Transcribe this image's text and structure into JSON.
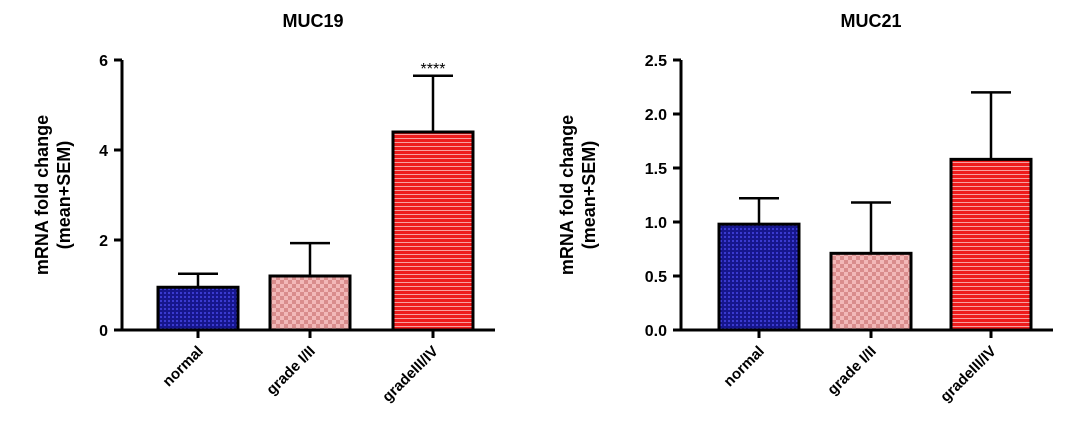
{
  "chart_data": [
    {
      "type": "bar",
      "title": "MUC19",
      "ylabel_line1": "mRNA fold change",
      "ylabel_line2": "(mean+SEM)",
      "xlabel": "",
      "categories": [
        "normal",
        "grade I/II",
        "gradeIII/IV"
      ],
      "values": [
        0.95,
        1.2,
        4.4
      ],
      "errors": [
        0.3,
        0.73,
        1.25
      ],
      "significance": [
        "",
        "",
        "****"
      ],
      "ylim": [
        0,
        6
      ],
      "yticks": [
        "0",
        "2",
        "4",
        "6"
      ],
      "ytick_values": [
        0,
        2,
        4,
        6
      ],
      "grid": false,
      "colors": [
        "#1a1aa0",
        "#e8a4a4",
        "#ee2020"
      ],
      "patterns": [
        "dots",
        "checker",
        "stripes"
      ]
    },
    {
      "type": "bar",
      "title": "MUC21",
      "ylabel_line1": "mRNA fold change",
      "ylabel_line2": "(mean+SEM)",
      "xlabel": "",
      "categories": [
        "normal",
        "grade I/II",
        "gradeIII/IV"
      ],
      "values": [
        0.98,
        0.71,
        1.58
      ],
      "errors": [
        0.24,
        0.47,
        0.62
      ],
      "significance": [
        "",
        "",
        ""
      ],
      "ylim": [
        0,
        2.5
      ],
      "yticks": [
        "0.0",
        "0.5",
        "1.0",
        "1.5",
        "2.0",
        "2.5"
      ],
      "ytick_values": [
        0,
        0.5,
        1.0,
        1.5,
        2.0,
        2.5
      ],
      "grid": false,
      "colors": [
        "#1a1aa0",
        "#e8a4a4",
        "#ee2020"
      ],
      "patterns": [
        "dots",
        "checker",
        "stripes"
      ]
    }
  ]
}
